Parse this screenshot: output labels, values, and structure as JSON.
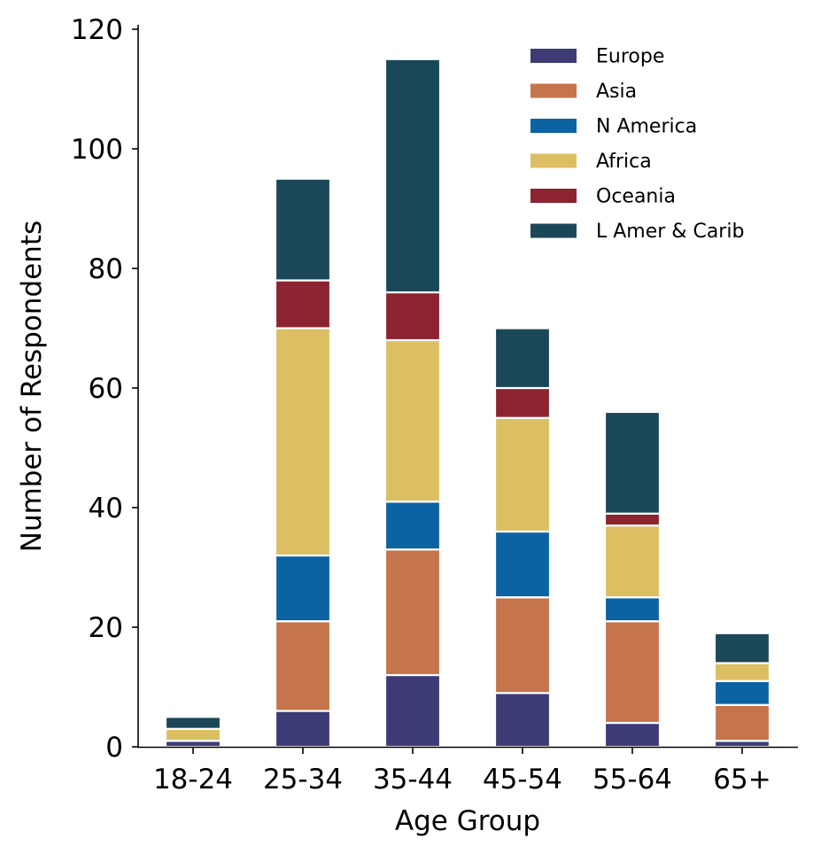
{
  "chart_data": {
    "type": "bar",
    "stacked": true,
    "title": "",
    "xlabel": "Age Group",
    "ylabel": "Number of Respondents",
    "ylim": [
      0,
      120
    ],
    "yticks": [
      0,
      20,
      40,
      60,
      80,
      100,
      120
    ],
    "categories": [
      "18-24",
      "25-34",
      "35-44",
      "45-54",
      "55-64",
      "65+"
    ],
    "series": [
      {
        "name": "Europe",
        "color": "#3d3b76",
        "values": [
          1,
          6,
          12,
          9,
          4,
          1
        ]
      },
      {
        "name": "Asia",
        "color": "#c6744b",
        "values": [
          0,
          15,
          21,
          16,
          17,
          6
        ]
      },
      {
        "name": "N America",
        "color": "#0b63a3",
        "values": [
          0,
          11,
          8,
          11,
          4,
          4
        ]
      },
      {
        "name": "Africa",
        "color": "#dbbf62",
        "values": [
          2,
          38,
          27,
          19,
          12,
          3
        ]
      },
      {
        "name": "Oceania",
        "color": "#8b2430",
        "values": [
          0,
          8,
          8,
          5,
          2,
          0
        ]
      },
      {
        "name": "L Amer & Carib",
        "color": "#1b4858",
        "values": [
          2,
          17,
          39,
          10,
          17,
          5
        ]
      }
    ],
    "legend_position": "top-right",
    "grid": false
  }
}
